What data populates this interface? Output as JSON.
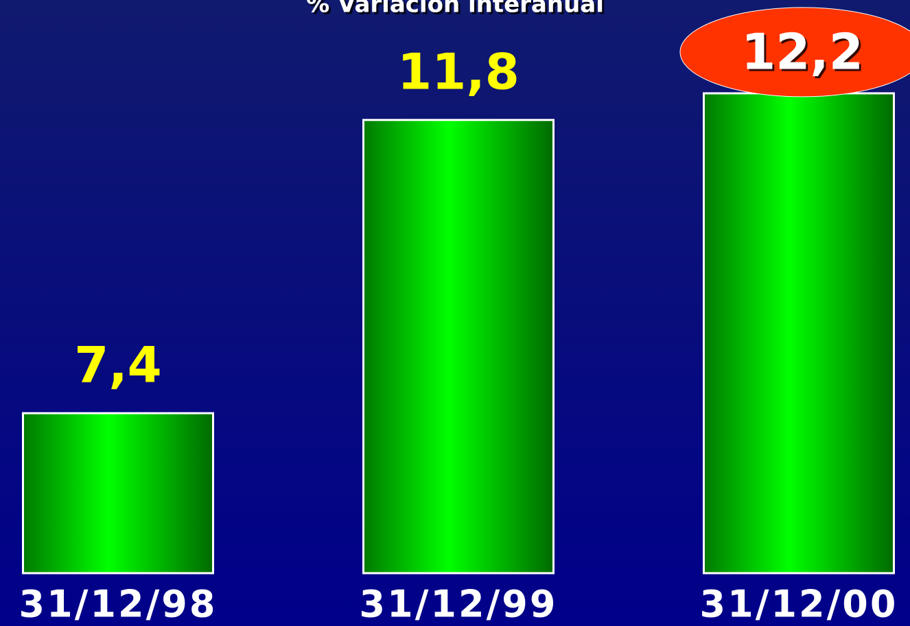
{
  "chart_data": {
    "type": "bar",
    "title": "% Variación interanual",
    "categories": [
      "31/12/98",
      "31/12/99",
      "31/12/00"
    ],
    "values": [
      7.4,
      11.8,
      12.2
    ],
    "value_labels": [
      "7,4",
      "11,8",
      "12,2"
    ],
    "color": "#00ff00",
    "label_color": "#ffff00",
    "highlight": {
      "index": 2,
      "color": "#ff3300"
    },
    "ylim": [
      5,
      13.6
    ]
  }
}
